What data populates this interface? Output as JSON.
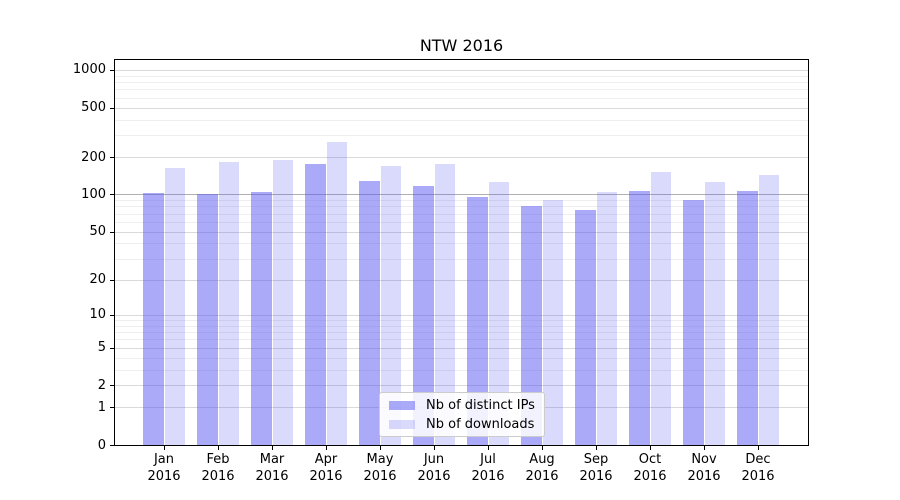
{
  "chart_data": {
    "type": "bar",
    "title": "NTW 2016",
    "categories": [
      "Jan",
      "Feb",
      "Mar",
      "Apr",
      "May",
      "Jun",
      "Jul",
      "Aug",
      "Sep",
      "Oct",
      "Nov",
      "Dec"
    ],
    "year_label": "2016",
    "series": [
      {
        "name": "Nb of distinct IPs",
        "key": "distinct-ips",
        "color": "rgba(85,85,243,0.5)",
        "values": [
          102,
          101,
          105,
          177,
          129,
          117,
          96,
          80,
          75,
          106,
          91,
          106
        ]
      },
      {
        "name": "Nb of downloads",
        "key": "downloads",
        "color": "rgba(85,85,243,0.22)",
        "values": [
          162,
          181,
          188,
          264,
          171,
          176,
          127,
          90,
          105,
          152,
          126,
          144
        ]
      }
    ],
    "y_ticks": [
      1000,
      500,
      200,
      100,
      50,
      20,
      10,
      5,
      2,
      1,
      0
    ],
    "y_scale": "log10(value+1)",
    "ylim": [
      0,
      1240
    ],
    "grid": "horizontal major+minor, emphasized line at 100",
    "legend_position": "lower center",
    "colors": {
      "bar_base": "#5555f3",
      "grid_minor": "#eeeeee",
      "grid_major": "#d9d9d9",
      "grid_hundred": "#b0b0b0",
      "axis": "#000000",
      "legend_border": "#cccccc"
    }
  }
}
